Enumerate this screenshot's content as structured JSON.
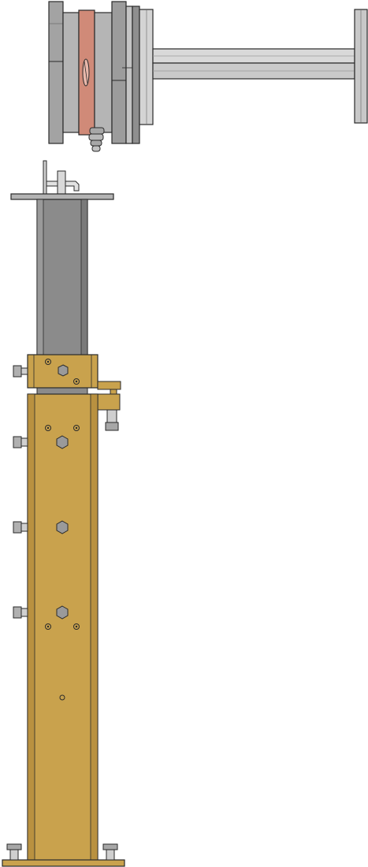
{
  "drawing": {
    "type": "mechanical-cad-drawing",
    "views": [
      "upper-assembly",
      "support-column"
    ],
    "colors": {
      "background": "#ffffff",
      "steel_dark": "#7d7d7d",
      "steel_mid": "#9c9c9c",
      "steel_light": "#c4c4c4",
      "steel_highlight": "#dcdcdc",
      "rod": "#d6d6d6",
      "copper": "#d08a78",
      "brass": "#c9a24d",
      "brass_dark": "#a88236",
      "outline": "#2a2a2a"
    }
  }
}
